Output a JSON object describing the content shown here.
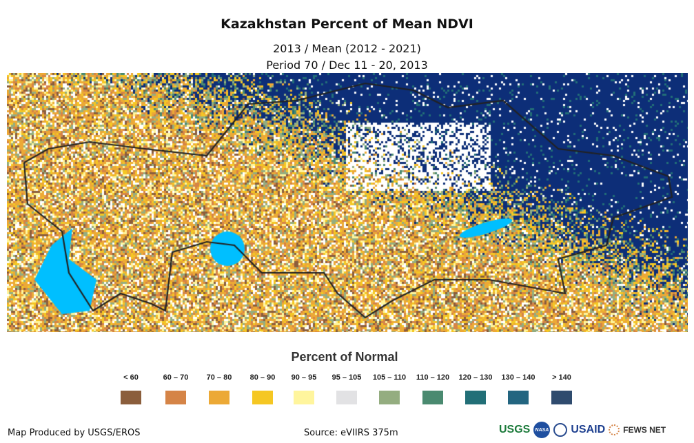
{
  "title": "Kazakhstan Percent of Mean NDVI",
  "subtitle1": "2013 / Mean (2012 - 2021)",
  "subtitle2": "Period 70 / Dec 11 - 20, 2013",
  "legend": {
    "title": "Percent of Normal",
    "items": [
      {
        "label": "< 60",
        "color": "#8b5e3c"
      },
      {
        "label": "60 – 70",
        "color": "#d58447"
      },
      {
        "label": "70 – 80",
        "color": "#eca936"
      },
      {
        "label": "80 – 90",
        "color": "#f5c723"
      },
      {
        "label": "90 – 95",
        "color": "#fff59d"
      },
      {
        "label": "95 – 105",
        "color": "#e2e2e4"
      },
      {
        "label": "105 – 110",
        "color": "#94ad80"
      },
      {
        "label": "110 – 120",
        "color": "#4a8a70"
      },
      {
        "label": "120 – 130",
        "color": "#226f77"
      },
      {
        "label": "130 – 140",
        "color": "#236580"
      },
      {
        "label": "> 140",
        "color": "#2f4b6e"
      }
    ]
  },
  "footer": {
    "producer": "Map Produced by USGS/EROS",
    "source": "Source: eVIIRS 375m"
  },
  "logos": [
    "USGS",
    "NASA",
    "USAID",
    "FEWS NET"
  ]
}
